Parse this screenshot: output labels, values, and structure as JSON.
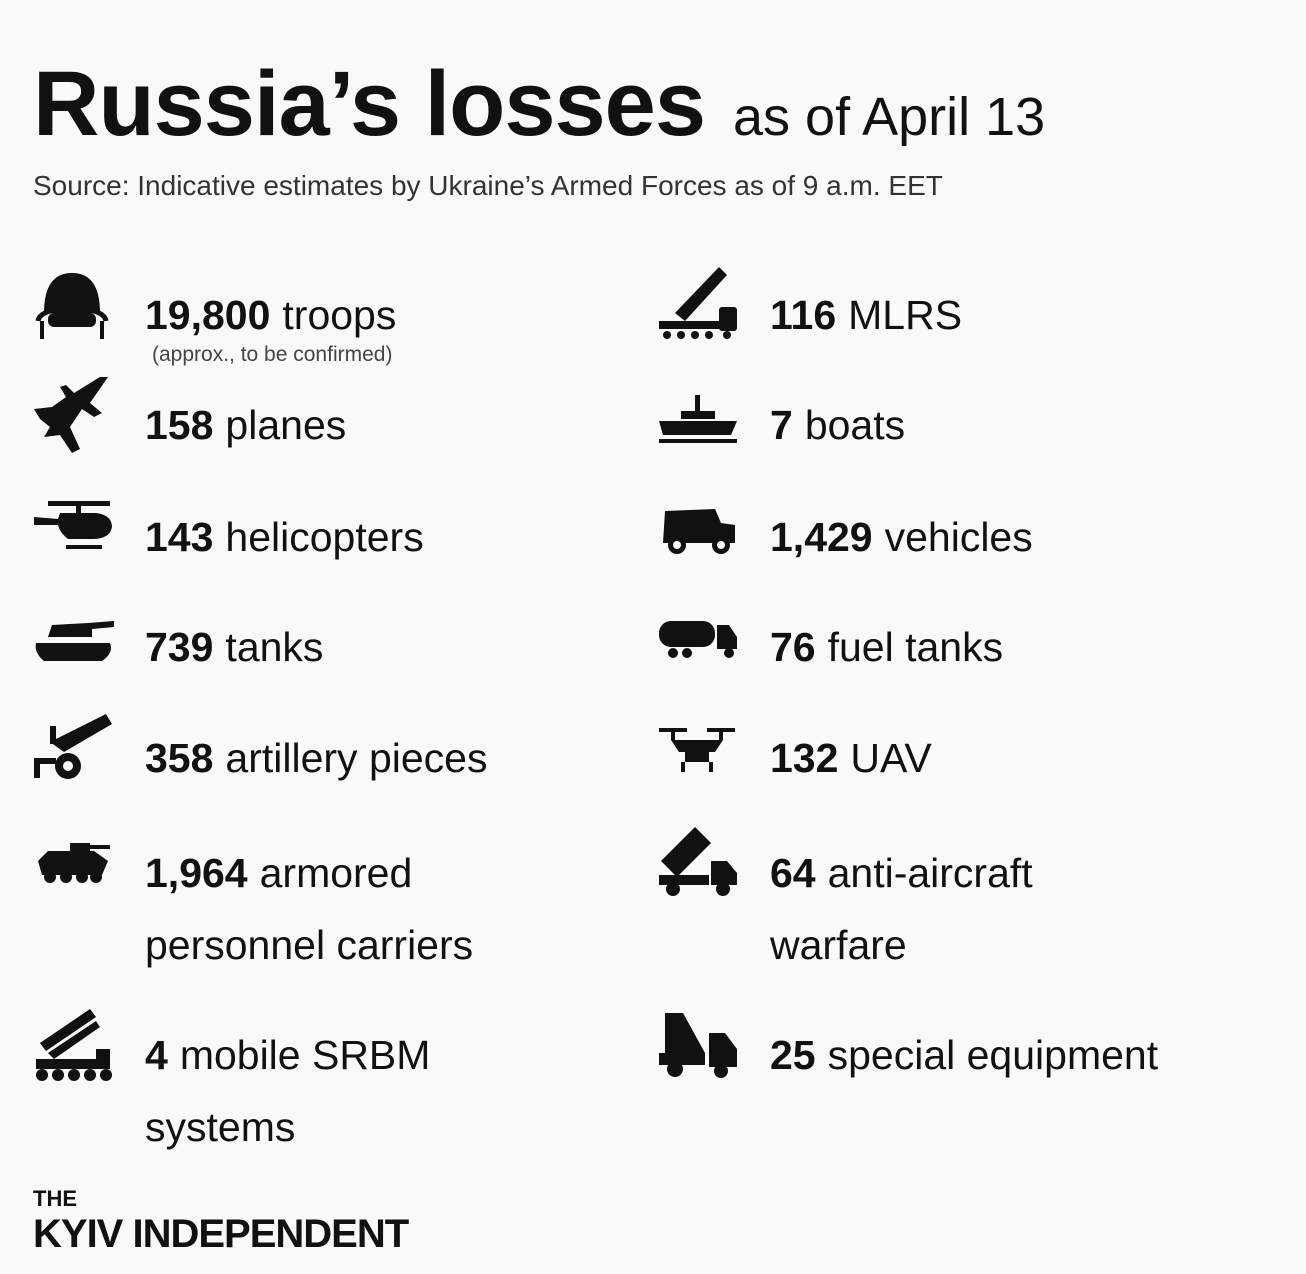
{
  "header": {
    "title": "Russia’s losses",
    "date": "as of April 13",
    "source": "Source: Indicative estimates by Ukraine’s Armed Forces as of 9 a.m. EET"
  },
  "left": [
    {
      "icon": "helmet-icon",
      "number": "19,800",
      "label": "troops",
      "note": "(approx., to be confirmed)"
    },
    {
      "icon": "plane-icon",
      "number": "158",
      "label": "planes"
    },
    {
      "icon": "helicopter-icon",
      "number": "143",
      "label": "helicopters"
    },
    {
      "icon": "tank-icon",
      "number": "739",
      "label": "tanks"
    },
    {
      "icon": "artillery-icon",
      "number": "358",
      "label": "artillery pieces"
    },
    {
      "icon": "apc-icon",
      "number": "1,964",
      "label": "armored",
      "label2": "personnel carriers"
    },
    {
      "icon": "srbm-launcher-icon",
      "number": "4",
      "label": "mobile SRBM",
      "label2": "systems"
    }
  ],
  "right": [
    {
      "icon": "mlrs-icon",
      "number": "116",
      "label": "MLRS"
    },
    {
      "icon": "boat-icon",
      "number": "7",
      "label": "boats"
    },
    {
      "icon": "vehicle-icon",
      "number": "1,429",
      "label": "vehicles"
    },
    {
      "icon": "fuel-tank-icon",
      "number": "76",
      "label": "fuel tanks"
    },
    {
      "icon": "drone-icon",
      "number": "132",
      "label": "UAV"
    },
    {
      "icon": "anti-aircraft-icon",
      "number": "64",
      "label": "anti-aircraft",
      "label2": "warfare"
    },
    {
      "icon": "special-equipment-icon",
      "number": "25",
      "label": "special equipment"
    }
  ],
  "footer": {
    "logo_top": "THE",
    "logo_main": "KYIV INDEPENDENT"
  }
}
